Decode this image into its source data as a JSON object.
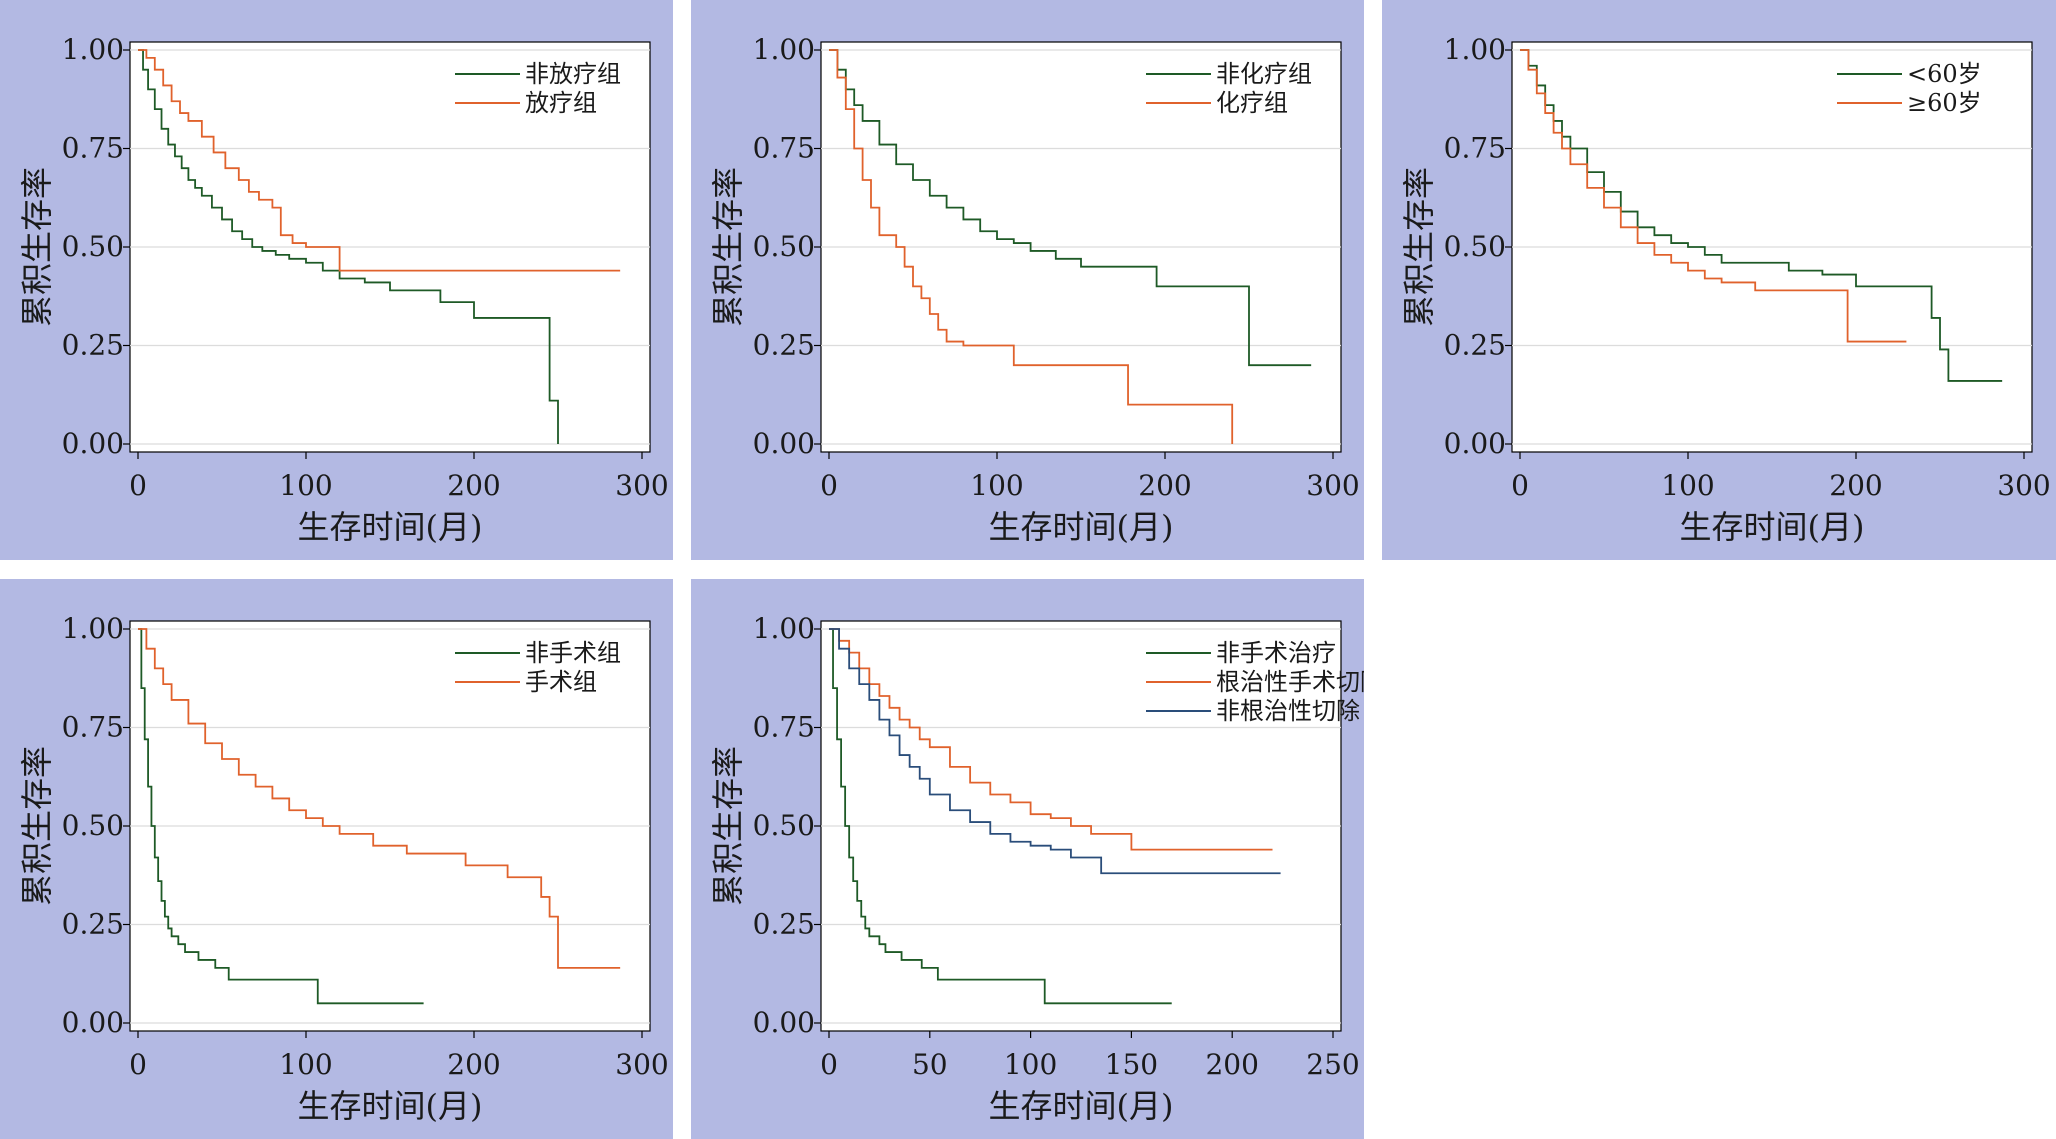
{
  "colors": {
    "panel_bg": "#b3b9e3",
    "green": "#1e5a26",
    "orange": "#e0622c",
    "blue": "#2a4d7a",
    "grid": "#dcdcdc"
  },
  "chart_data": [
    {
      "type": "line",
      "xlabel": "生存时间(月)",
      "ylabel": "累积生存率",
      "xlim": [
        0,
        300
      ],
      "ylim": [
        0,
        1
      ],
      "x_ticks": [
        0,
        100,
        200,
        300
      ],
      "y_ticks": [
        "0.00",
        "0.25",
        "0.50",
        "0.75",
        "1.00"
      ],
      "grid": true,
      "legend": "top-right",
      "series": [
        {
          "name": "非放疗组",
          "color": "green",
          "x": [
            0,
            3,
            6,
            10,
            14,
            18,
            22,
            26,
            30,
            34,
            38,
            44,
            50,
            56,
            62,
            68,
            74,
            82,
            90,
            100,
            110,
            120,
            135,
            150,
            170,
            180,
            200,
            220,
            240,
            245,
            245,
            250,
            250
          ],
          "y": [
            1.0,
            0.95,
            0.9,
            0.85,
            0.8,
            0.76,
            0.73,
            0.7,
            0.67,
            0.65,
            0.63,
            0.6,
            0.57,
            0.54,
            0.52,
            0.5,
            0.49,
            0.48,
            0.47,
            0.46,
            0.44,
            0.42,
            0.41,
            0.39,
            0.39,
            0.36,
            0.32,
            0.32,
            0.32,
            0.21,
            0.11,
            0.11,
            0.0
          ]
        },
        {
          "name": "放疗组",
          "color": "orange",
          "x": [
            0,
            5,
            10,
            15,
            20,
            25,
            30,
            38,
            45,
            52,
            60,
            66,
            72,
            80,
            85,
            92,
            100,
            110,
            120,
            150,
            200,
            250,
            287
          ],
          "y": [
            1.0,
            0.98,
            0.95,
            0.91,
            0.87,
            0.84,
            0.82,
            0.78,
            0.74,
            0.7,
            0.67,
            0.64,
            0.62,
            0.6,
            0.53,
            0.51,
            0.5,
            0.5,
            0.44,
            0.44,
            0.44,
            0.44,
            0.44
          ]
        }
      ]
    },
    {
      "type": "line",
      "xlabel": "生存时间(月)",
      "ylabel": "累积生存率",
      "xlim": [
        0,
        300
      ],
      "ylim": [
        0,
        1
      ],
      "x_ticks": [
        0,
        100,
        200,
        300
      ],
      "y_ticks": [
        "0.00",
        "0.25",
        "0.50",
        "0.75",
        "1.00"
      ],
      "grid": true,
      "legend": "top-right",
      "series": [
        {
          "name": "非化疗组",
          "color": "green",
          "x": [
            0,
            5,
            10,
            15,
            20,
            30,
            40,
            50,
            60,
            70,
            80,
            90,
            100,
            110,
            120,
            135,
            150,
            175,
            195,
            225,
            245,
            250,
            250,
            287
          ],
          "y": [
            1.0,
            0.95,
            0.9,
            0.86,
            0.82,
            0.76,
            0.71,
            0.67,
            0.63,
            0.6,
            0.57,
            0.54,
            0.52,
            0.51,
            0.49,
            0.47,
            0.45,
            0.45,
            0.4,
            0.4,
            0.4,
            0.3,
            0.2,
            0.2
          ]
        },
        {
          "name": "化疗组",
          "color": "orange",
          "x": [
            0,
            5,
            10,
            15,
            20,
            25,
            30,
            40,
            45,
            50,
            55,
            60,
            65,
            70,
            80,
            90,
            100,
            110,
            140,
            175,
            178,
            200,
            240,
            240
          ],
          "y": [
            1.0,
            0.93,
            0.85,
            0.75,
            0.67,
            0.6,
            0.53,
            0.5,
            0.45,
            0.4,
            0.37,
            0.33,
            0.29,
            0.26,
            0.25,
            0.25,
            0.25,
            0.2,
            0.2,
            0.2,
            0.1,
            0.1,
            0.1,
            0.0
          ]
        }
      ]
    },
    {
      "type": "line",
      "xlabel": "生存时间(月)",
      "ylabel": "累积生存率",
      "xlim": [
        0,
        300
      ],
      "ylim": [
        0,
        1
      ],
      "x_ticks": [
        0,
        100,
        200,
        300
      ],
      "y_ticks": [
        "0.00",
        "0.25",
        "0.50",
        "0.75",
        "1.00"
      ],
      "grid": true,
      "legend": "top-right",
      "series": [
        {
          "name": "<60岁",
          "color": "green",
          "x": [
            0,
            5,
            10,
            15,
            20,
            25,
            30,
            40,
            50,
            60,
            70,
            80,
            90,
            100,
            110,
            120,
            140,
            160,
            180,
            200,
            240,
            245,
            250,
            255,
            287
          ],
          "y": [
            1.0,
            0.96,
            0.91,
            0.86,
            0.82,
            0.78,
            0.75,
            0.69,
            0.64,
            0.59,
            0.55,
            0.53,
            0.51,
            0.5,
            0.48,
            0.46,
            0.46,
            0.44,
            0.43,
            0.4,
            0.4,
            0.32,
            0.24,
            0.16,
            0.16
          ]
        },
        {
          "name": "≥60岁",
          "color": "orange",
          "x": [
            0,
            5,
            10,
            15,
            20,
            25,
            30,
            40,
            50,
            60,
            70,
            80,
            90,
            100,
            110,
            120,
            140,
            160,
            180,
            195,
            195,
            230
          ],
          "y": [
            1.0,
            0.95,
            0.89,
            0.84,
            0.79,
            0.75,
            0.71,
            0.65,
            0.6,
            0.55,
            0.51,
            0.48,
            0.46,
            0.44,
            0.42,
            0.41,
            0.39,
            0.39,
            0.39,
            0.39,
            0.26,
            0.26
          ]
        }
      ]
    },
    {
      "type": "line",
      "xlabel": "生存时间(月)",
      "ylabel": "累积生存率",
      "xlim": [
        0,
        300
      ],
      "ylim": [
        0,
        1
      ],
      "x_ticks": [
        0,
        100,
        200,
        300
      ],
      "y_ticks": [
        "0.00",
        "0.25",
        "0.50",
        "0.75",
        "1.00"
      ],
      "grid": true,
      "legend": "top-right",
      "series": [
        {
          "name": "非手术组",
          "color": "green",
          "x": [
            0,
            2,
            4,
            6,
            8,
            10,
            12,
            14,
            16,
            18,
            20,
            24,
            28,
            36,
            46,
            54,
            70,
            90,
            107,
            130,
            170
          ],
          "y": [
            1.0,
            0.85,
            0.72,
            0.6,
            0.5,
            0.42,
            0.36,
            0.31,
            0.27,
            0.24,
            0.22,
            0.2,
            0.18,
            0.16,
            0.14,
            0.11,
            0.11,
            0.11,
            0.05,
            0.05,
            0.05
          ]
        },
        {
          "name": "手术组",
          "color": "orange",
          "x": [
            0,
            5,
            10,
            15,
            20,
            30,
            40,
            50,
            60,
            70,
            80,
            90,
            100,
            110,
            120,
            140,
            160,
            180,
            195,
            220,
            240,
            245,
            250,
            287
          ],
          "y": [
            1.0,
            0.95,
            0.9,
            0.86,
            0.82,
            0.76,
            0.71,
            0.67,
            0.63,
            0.6,
            0.57,
            0.54,
            0.52,
            0.5,
            0.48,
            0.45,
            0.43,
            0.43,
            0.4,
            0.37,
            0.32,
            0.27,
            0.14,
            0.14
          ]
        }
      ]
    },
    {
      "type": "line",
      "xlabel": "生存时间(月)",
      "ylabel": "累积生存率",
      "xlim": [
        0,
        250
      ],
      "ylim": [
        0,
        1
      ],
      "x_ticks": [
        0,
        50,
        100,
        150,
        200,
        250
      ],
      "y_ticks": [
        "0.00",
        "0.25",
        "0.50",
        "0.75",
        "1.00"
      ],
      "grid": true,
      "legend": "top-right",
      "series": [
        {
          "name": "非手术治疗",
          "color": "green",
          "x": [
            0,
            2,
            4,
            6,
            8,
            10,
            12,
            14,
            16,
            18,
            20,
            25,
            28,
            36,
            46,
            54,
            70,
            90,
            107,
            130,
            170
          ],
          "y": [
            1.0,
            0.85,
            0.72,
            0.6,
            0.5,
            0.42,
            0.36,
            0.31,
            0.27,
            0.24,
            0.22,
            0.2,
            0.18,
            0.16,
            0.14,
            0.11,
            0.11,
            0.11,
            0.05,
            0.05,
            0.05
          ]
        },
        {
          "name": "根治性手术切除",
          "color": "orange",
          "x": [
            0,
            5,
            10,
            15,
            20,
            25,
            30,
            35,
            40,
            45,
            50,
            60,
            70,
            80,
            90,
            100,
            110,
            120,
            130,
            150,
            180,
            220
          ],
          "y": [
            1.0,
            0.97,
            0.94,
            0.9,
            0.86,
            0.83,
            0.8,
            0.77,
            0.75,
            0.72,
            0.7,
            0.65,
            0.61,
            0.58,
            0.56,
            0.53,
            0.52,
            0.5,
            0.48,
            0.44,
            0.44,
            0.44
          ]
        },
        {
          "name": "非根治性切除",
          "color": "blue",
          "x": [
            0,
            5,
            10,
            15,
            20,
            25,
            30,
            35,
            40,
            45,
            50,
            60,
            70,
            80,
            90,
            100,
            110,
            120,
            130,
            135,
            180,
            224
          ],
          "y": [
            1.0,
            0.95,
            0.9,
            0.86,
            0.82,
            0.77,
            0.73,
            0.68,
            0.65,
            0.62,
            0.58,
            0.54,
            0.51,
            0.48,
            0.46,
            0.45,
            0.44,
            0.42,
            0.42,
            0.38,
            0.38,
            0.38
          ]
        }
      ]
    }
  ]
}
